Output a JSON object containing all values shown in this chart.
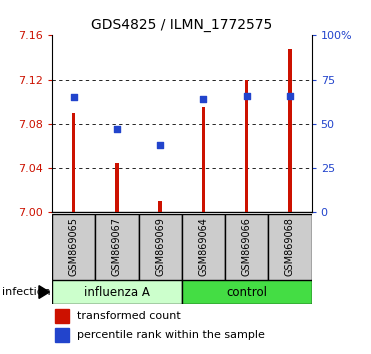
{
  "title": "GDS4825 / ILMN_1772575",
  "samples": [
    "GSM869065",
    "GSM869067",
    "GSM869069",
    "GSM869064",
    "GSM869066",
    "GSM869068"
  ],
  "bar_values": [
    7.09,
    7.045,
    7.01,
    7.095,
    7.12,
    7.148
  ],
  "bar_bottom": 7.0,
  "percentile_values": [
    65,
    47,
    38,
    64,
    66,
    66
  ],
  "ylim_left": [
    7.0,
    7.16
  ],
  "ylim_right": [
    0,
    100
  ],
  "yticks_left": [
    7.0,
    7.04,
    7.08,
    7.12,
    7.16
  ],
  "yticks_right": [
    0,
    25,
    50,
    75,
    100
  ],
  "bar_color": "#cc1100",
  "dot_color": "#2244cc",
  "bar_width": 0.08,
  "label_area_color": "#cccccc",
  "infection_label": "infection",
  "group_info": [
    {
      "label": "influenza A",
      "start": 0,
      "end": 3,
      "color": "#ccffcc"
    },
    {
      "label": "control",
      "start": 3,
      "end": 6,
      "color": "#44dd44"
    }
  ],
  "legend_items": [
    "transformed count",
    "percentile rank within the sample"
  ],
  "legend_colors": [
    "#cc1100",
    "#2244cc"
  ]
}
